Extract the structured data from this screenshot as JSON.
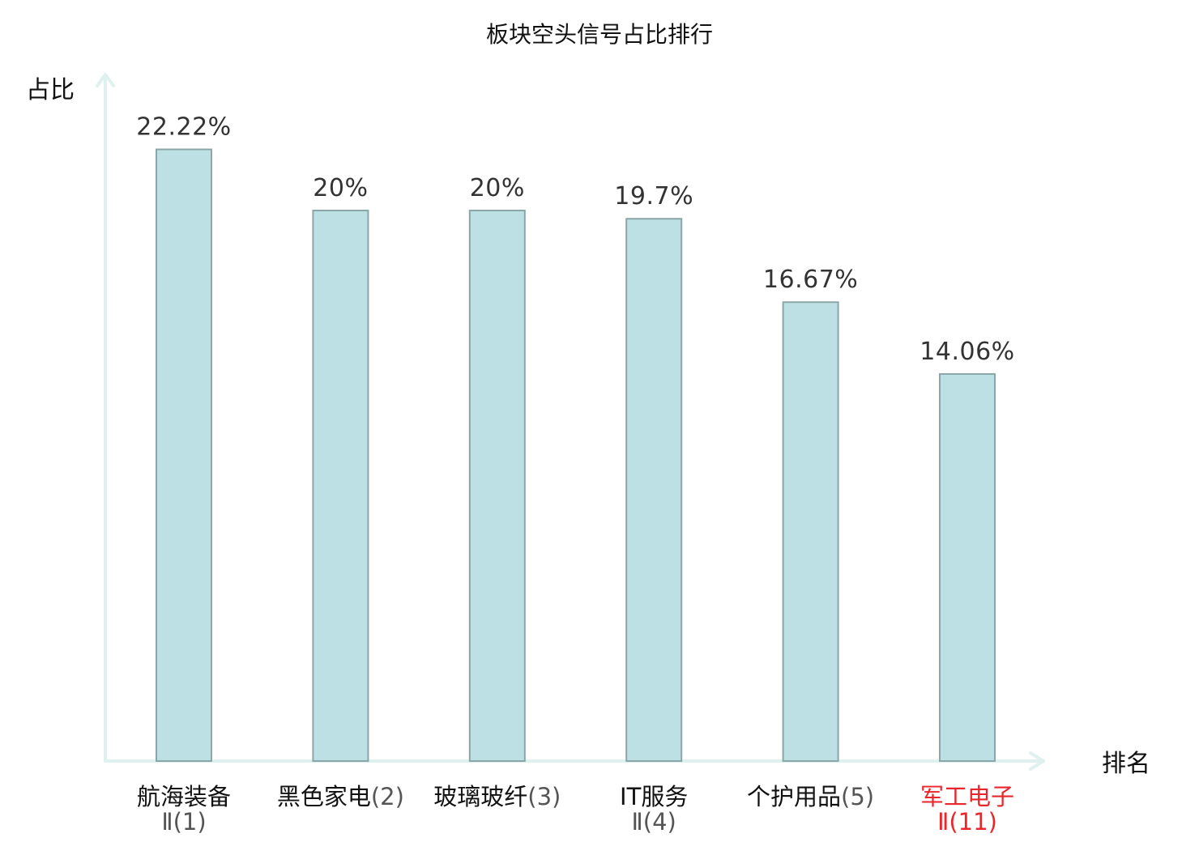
{
  "chart_data": {
    "type": "bar",
    "title": "板块空头信号占比排行",
    "xlabel": "排名",
    "ylabel": "占比",
    "unit": "%",
    "ylim": [
      0,
      25
    ],
    "grid": false,
    "categories": [
      {
        "name": "航海装备",
        "rank_text": "Ⅱ(1)",
        "highlight": false
      },
      {
        "name": "黑色家电",
        "rank_text": "(2)",
        "highlight": false
      },
      {
        "name": "玻璃玻纤",
        "rank_text": "(3)",
        "highlight": false
      },
      {
        "name": "IT服务",
        "rank_text": "Ⅱ(4)",
        "highlight": false
      },
      {
        "name": "个护用品",
        "rank_text": "(5)",
        "highlight": false
      },
      {
        "name": "军工电子",
        "rank_text": "Ⅱ(11)",
        "highlight": true
      }
    ],
    "values": [
      22.22,
      20,
      20,
      19.7,
      16.67,
      14.06
    ],
    "value_labels": [
      "22.22%",
      "20%",
      "20%",
      "19.7%",
      "16.67%",
      "14.06%"
    ],
    "colors": {
      "bar_fill": "#bce0e3",
      "bar_stroke": "#8aa6a9",
      "axis": "#dff1ef",
      "highlight": "#e8262b"
    }
  }
}
